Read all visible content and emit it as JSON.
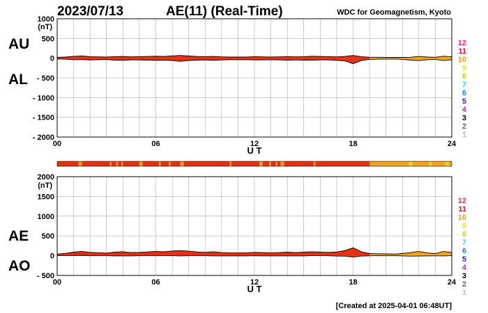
{
  "header": {
    "date": "2023/07/13",
    "title": "AE(11) (Real-Time)",
    "source": "WDC for Geomagnetism, Kyoto"
  },
  "footer": {
    "created": "[Created at 2025-04-01 06:48UT]"
  },
  "colors": {
    "fill_primary": "#e63012",
    "fill_secondary": "#f0a41f",
    "fill_tertiary": "#f5d23a",
    "grid": "#999999"
  },
  "station_scale": [
    {
      "label": "12",
      "color": "#ff1f6e"
    },
    {
      "label": "11",
      "color": "#e0102c"
    },
    {
      "label": "10",
      "color": "#f39c12"
    },
    {
      "label": "9",
      "color": "#f6e01e"
    },
    {
      "label": "8",
      "color": "#b2e21c"
    },
    {
      "label": "7",
      "color": "#22dcdc"
    },
    {
      "label": "6",
      "color": "#1d83ff"
    },
    {
      "label": "5",
      "color": "#2222cc"
    },
    {
      "label": "4",
      "color": "#cc22cc"
    },
    {
      "label": "3",
      "color": "#000000"
    },
    {
      "label": "2",
      "color": "#666666"
    },
    {
      "label": "1",
      "color": "#bbbbbb"
    }
  ],
  "chart_data": [
    {
      "type": "area",
      "id": "au_al",
      "series_labels": [
        "AU",
        "AL"
      ],
      "unit": "(nT)",
      "xlabel": "U T",
      "x_ticks": [
        "00",
        "06",
        "12",
        "18",
        "24"
      ],
      "xlim": [
        0,
        24
      ],
      "ylim": [
        -2000,
        1000
      ],
      "y_ticks": [
        "1000",
        "500",
        "0",
        "- 500",
        "- 1000",
        "- 1500",
        "- 2000"
      ],
      "grid": true,
      "x": [
        0,
        0.5,
        1,
        1.5,
        2,
        2.5,
        3,
        3.5,
        4,
        4.5,
        5,
        5.5,
        6,
        6.5,
        7,
        7.5,
        8,
        8.5,
        9,
        9.5,
        10,
        10.5,
        11,
        11.5,
        12,
        12.5,
        13,
        13.5,
        14,
        14.5,
        15,
        15.5,
        16,
        16.5,
        17,
        17.5,
        18,
        18.5,
        19,
        19.5,
        20,
        20.5,
        21,
        21.5,
        22,
        22.5,
        23,
        23.5,
        24
      ],
      "series": [
        {
          "name": "AU",
          "values": [
            20,
            30,
            45,
            60,
            40,
            35,
            30,
            40,
            45,
            35,
            40,
            45,
            50,
            45,
            60,
            70,
            55,
            45,
            40,
            45,
            35,
            30,
            30,
            30,
            40,
            35,
            30,
            35,
            40,
            35,
            40,
            50,
            45,
            40,
            35,
            45,
            70,
            40,
            25,
            25,
            20,
            20,
            20,
            25,
            45,
            30,
            25,
            50,
            40
          ]
        },
        {
          "name": "AL",
          "values": [
            -20,
            -25,
            -40,
            -35,
            -45,
            -40,
            -35,
            -50,
            -55,
            -45,
            -45,
            -50,
            -55,
            -50,
            -60,
            -80,
            -60,
            -50,
            -45,
            -55,
            -45,
            -40,
            -40,
            -40,
            -45,
            -45,
            -40,
            -45,
            -50,
            -45,
            -50,
            -50,
            -45,
            -45,
            -55,
            -70,
            -140,
            -60,
            -30,
            -25,
            -25,
            -20,
            -30,
            -50,
            -60,
            -40,
            -30,
            -60,
            -40
          ]
        }
      ]
    },
    {
      "type": "area",
      "id": "ae_ao",
      "series_labels": [
        "AE",
        "AO"
      ],
      "unit": "(nT)",
      "xlabel": "U T",
      "x_ticks": [
        "00",
        "06",
        "12",
        "18",
        "24"
      ],
      "xlim": [
        0,
        24
      ],
      "ylim": [
        -500,
        2000
      ],
      "y_ticks": [
        "2000",
        "1500",
        "1000",
        "500",
        "0",
        "- 500"
      ],
      "grid": true,
      "x": [
        0,
        0.5,
        1,
        1.5,
        2,
        2.5,
        3,
        3.5,
        4,
        4.5,
        5,
        5.5,
        6,
        6.5,
        7,
        7.5,
        8,
        8.5,
        9,
        9.5,
        10,
        10.5,
        11,
        11.5,
        12,
        12.5,
        13,
        13.5,
        14,
        14.5,
        15,
        15.5,
        16,
        16.5,
        17,
        17.5,
        18,
        18.5,
        19,
        19.5,
        20,
        20.5,
        21,
        21.5,
        22,
        22.5,
        23,
        23.5,
        24
      ],
      "series": [
        {
          "name": "AE",
          "values": [
            40,
            60,
            90,
            110,
            85,
            75,
            65,
            90,
            100,
            80,
            85,
            95,
            110,
            100,
            120,
            130,
            115,
            95,
            85,
            100,
            80,
            70,
            70,
            70,
            85,
            80,
            70,
            80,
            90,
            80,
            90,
            100,
            90,
            85,
            95,
            130,
            200,
            100,
            55,
            50,
            45,
            40,
            55,
            80,
            110,
            70,
            55,
            110,
            80
          ]
        },
        {
          "name": "AO",
          "values": [
            0,
            2,
            3,
            10,
            -2,
            -2,
            -2,
            -5,
            -5,
            -5,
            -2,
            -2,
            -2,
            -2,
            0,
            -5,
            -2,
            -2,
            -2,
            -5,
            -5,
            -5,
            -5,
            -5,
            -2,
            -5,
            -5,
            -5,
            -5,
            -5,
            -5,
            0,
            0,
            -2,
            -10,
            -12,
            -35,
            -10,
            -3,
            0,
            -2,
            0,
            -5,
            -12,
            -8,
            -5,
            -3,
            -5,
            0
          ]
        }
      ]
    }
  ],
  "station_bar": {
    "segments": [
      {
        "from": 0,
        "to": 1.3,
        "level": 11
      },
      {
        "from": 1.3,
        "to": 1.5,
        "level": 10
      },
      {
        "from": 1.5,
        "to": 3.2,
        "level": 11
      },
      {
        "from": 3.2,
        "to": 3.3,
        "level": 10
      },
      {
        "from": 3.3,
        "to": 3.6,
        "level": 11
      },
      {
        "from": 3.6,
        "to": 3.7,
        "level": 10
      },
      {
        "from": 3.7,
        "to": 3.9,
        "level": 11
      },
      {
        "from": 3.9,
        "to": 4.0,
        "level": 10
      },
      {
        "from": 4.0,
        "to": 5.0,
        "level": 11
      },
      {
        "from": 5.0,
        "to": 5.2,
        "level": 10
      },
      {
        "from": 5.2,
        "to": 6.2,
        "level": 11
      },
      {
        "from": 6.2,
        "to": 6.3,
        "level": 10
      },
      {
        "from": 6.3,
        "to": 6.8,
        "level": 11
      },
      {
        "from": 6.8,
        "to": 6.9,
        "level": 10
      },
      {
        "from": 6.9,
        "to": 7.5,
        "level": 11
      },
      {
        "from": 7.5,
        "to": 7.7,
        "level": 10
      },
      {
        "from": 7.7,
        "to": 10.5,
        "level": 11
      },
      {
        "from": 10.5,
        "to": 10.6,
        "level": 10
      },
      {
        "from": 10.6,
        "to": 12.3,
        "level": 11
      },
      {
        "from": 12.3,
        "to": 12.5,
        "level": 10
      },
      {
        "from": 12.5,
        "to": 12.9,
        "level": 11
      },
      {
        "from": 12.9,
        "to": 13.0,
        "level": 10
      },
      {
        "from": 13.0,
        "to": 13.3,
        "level": 11
      },
      {
        "from": 13.3,
        "to": 13.4,
        "level": 10
      },
      {
        "from": 13.4,
        "to": 13.6,
        "level": 11
      },
      {
        "from": 13.6,
        "to": 13.8,
        "level": 10
      },
      {
        "from": 13.8,
        "to": 15.6,
        "level": 11
      },
      {
        "from": 15.6,
        "to": 15.7,
        "level": 10
      },
      {
        "from": 15.7,
        "to": 19.0,
        "level": 11
      },
      {
        "from": 19.0,
        "to": 21.4,
        "level": 10
      },
      {
        "from": 21.4,
        "to": 21.6,
        "level": 9
      },
      {
        "from": 21.6,
        "to": 22.6,
        "level": 10
      },
      {
        "from": 22.6,
        "to": 22.8,
        "level": 9
      },
      {
        "from": 22.8,
        "to": 23.6,
        "level": 10
      },
      {
        "from": 23.6,
        "to": 23.8,
        "level": 9
      },
      {
        "from": 23.8,
        "to": 24,
        "level": 10
      }
    ]
  }
}
